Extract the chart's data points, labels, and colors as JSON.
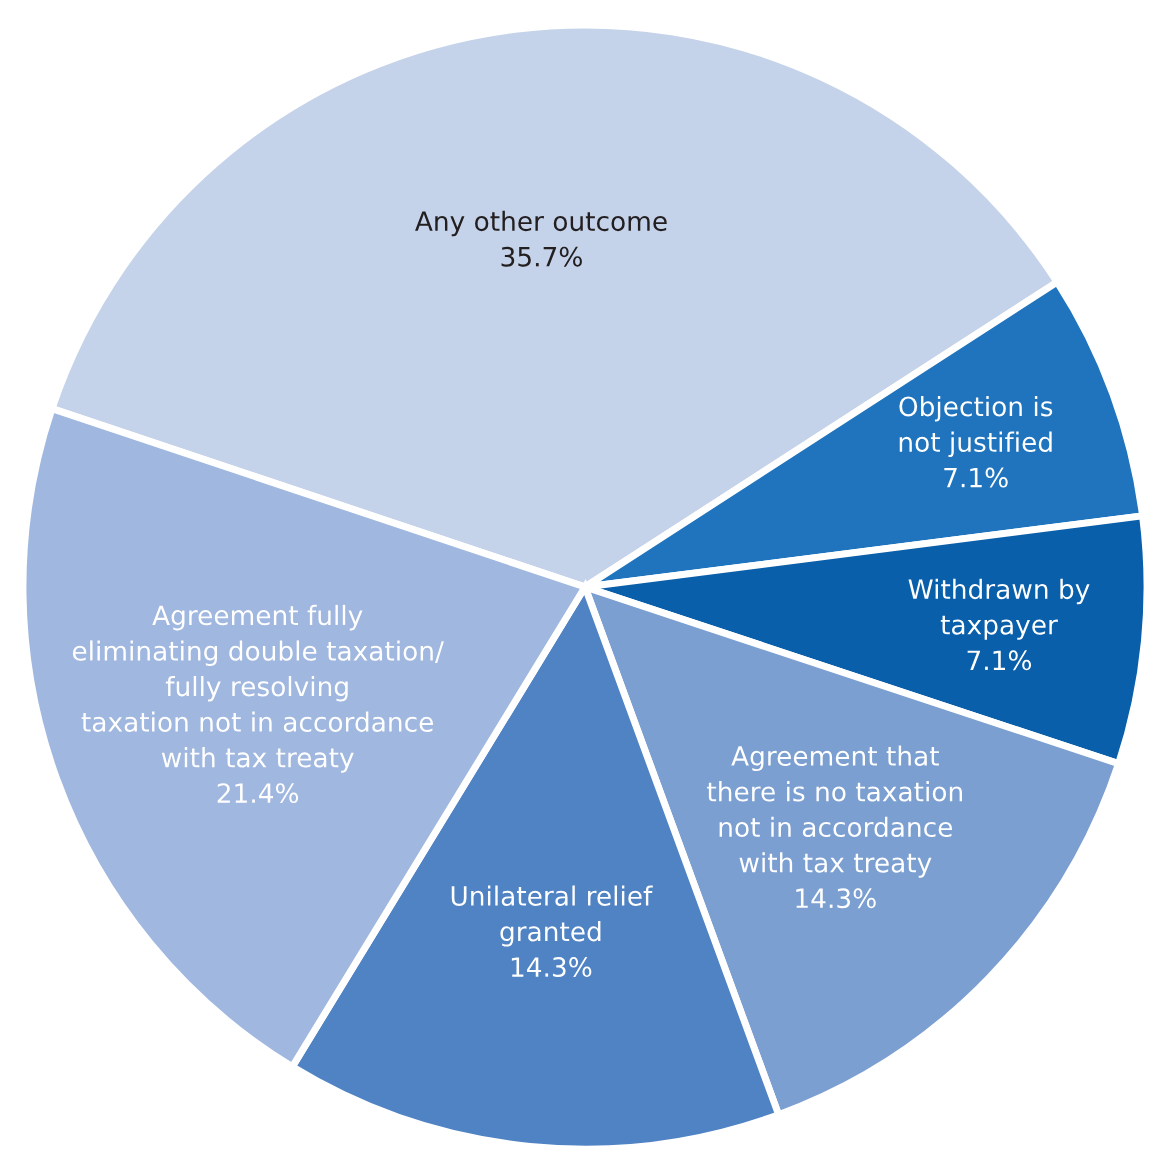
{
  "chart_data": {
    "type": "pie",
    "categories": [
      "Any other outcome",
      "Objection is\nnot justified",
      "Withdrawn by\ntaxpayer",
      "Agreement that\nthere is no taxation\nnot in accordance\nwith tax treaty",
      "Unilateral relief\ngranted",
      "Agreement fully\neliminating double taxation/\nfully resolving\ntaxation not in accordance\nwith tax treaty"
    ],
    "values": [
      35.7,
      7.1,
      7.1,
      14.3,
      14.3,
      21.4
    ],
    "value_labels": [
      "35.7%",
      "7.1%",
      "7.1%",
      "14.3%",
      "14.3%",
      "21.4%"
    ],
    "colors": [
      "#c5d3ea",
      "#1f74bd",
      "#0a5fab",
      "#7b9fd1",
      "#4f83c4",
      "#a0b7df"
    ]
  }
}
